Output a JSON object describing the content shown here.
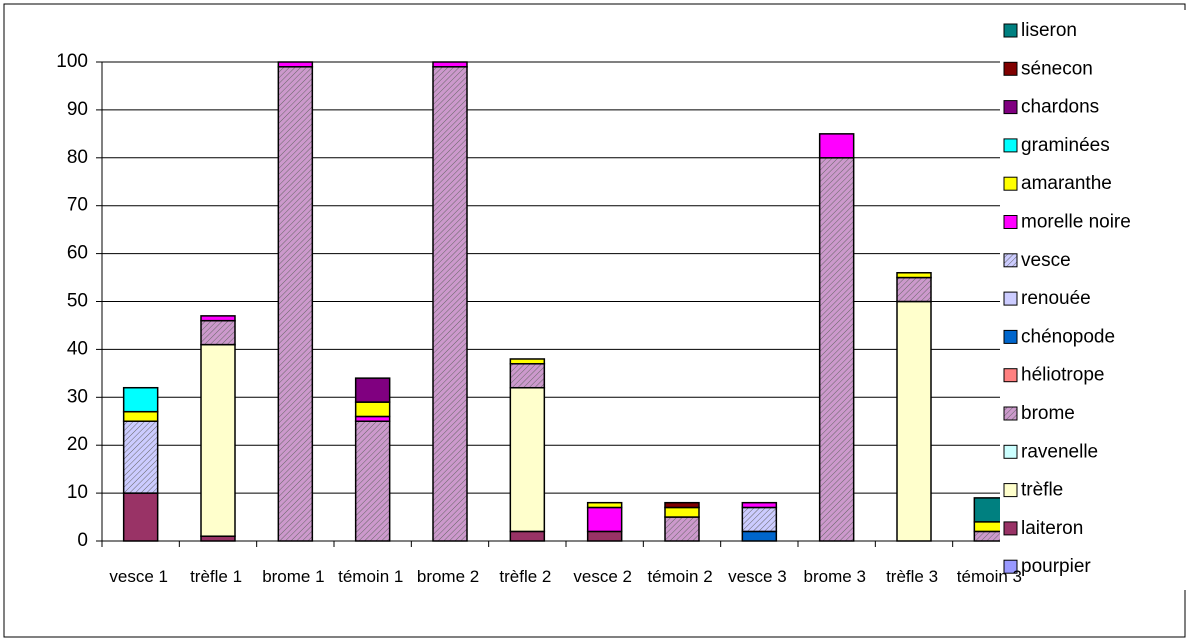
{
  "chart_data": {
    "type": "stacked_bar",
    "categories": [
      "vesce 1",
      "trèfle 1",
      "brome 1",
      "témoin 1",
      "brome 2",
      "trèfle 2",
      "vesce 2",
      "témoin 2",
      "vesce 3",
      "brome 3",
      "trèfle 3",
      "témoin 3"
    ],
    "series": [
      {
        "name": "liseron",
        "color": "#008080",
        "values": [
          0,
          0,
          0,
          0,
          0,
          0,
          0,
          0,
          0,
          0,
          0,
          5
        ]
      },
      {
        "name": "sénecon",
        "color": "#800000",
        "values": [
          0,
          0,
          0,
          0,
          0,
          0,
          0,
          1,
          0,
          0,
          0,
          0
        ]
      },
      {
        "name": "chardons",
        "color": "#800080",
        "values": [
          0,
          0,
          0,
          5,
          0,
          0,
          0,
          0,
          0,
          0,
          0,
          0
        ]
      },
      {
        "name": "graminées",
        "color": "#00ffff",
        "values": [
          5,
          0,
          0,
          0,
          0,
          0,
          0,
          0,
          0,
          0,
          0,
          0
        ]
      },
      {
        "name": "amaranthe",
        "color": "#ffff00",
        "values": [
          2,
          0,
          0,
          3,
          0,
          1,
          1,
          2,
          0,
          0,
          1,
          2
        ]
      },
      {
        "name": "morelle noire",
        "color": "#ff00ff",
        "values": [
          0,
          1,
          1,
          1,
          1,
          0,
          5,
          0,
          1,
          5,
          0,
          0
        ]
      },
      {
        "name": "vesce",
        "color": "#ccccff",
        "hatch": true,
        "values": [
          15,
          0,
          0,
          0,
          0,
          0,
          0,
          0,
          5,
          0,
          0,
          0
        ]
      },
      {
        "name": "renouée",
        "color": "#ccccff",
        "values": [
          0,
          0,
          0,
          0,
          0,
          0,
          0,
          0,
          0,
          0,
          0,
          0
        ]
      },
      {
        "name": "chénopode",
        "color": "#0066cc",
        "values": [
          0,
          0,
          0,
          0,
          0,
          0,
          0,
          0,
          2,
          0,
          0,
          0
        ]
      },
      {
        "name": "héliotrope",
        "color": "#ff8080",
        "values": [
          0,
          0,
          0,
          0,
          0,
          0,
          0,
          0,
          0,
          0,
          0,
          0
        ]
      },
      {
        "name": "brome",
        "color": "#cc99cc",
        "hatch": true,
        "values": [
          0,
          5,
          99,
          25,
          99,
          5,
          0,
          5,
          0,
          80,
          5,
          2
        ]
      },
      {
        "name": "ravenelle",
        "color": "#ccffff",
        "values": [
          0,
          0,
          0,
          0,
          0,
          0,
          0,
          0,
          0,
          0,
          0,
          0
        ]
      },
      {
        "name": "trèfle",
        "color": "#ffffcc",
        "values": [
          0,
          40,
          0,
          0,
          0,
          30,
          0,
          0,
          0,
          0,
          50,
          0
        ]
      },
      {
        "name": "laiteron",
        "color": "#993366",
        "values": [
          10,
          1,
          0,
          0,
          0,
          2,
          2,
          0,
          0,
          0,
          0,
          0
        ]
      },
      {
        "name": "pourpier",
        "color": "#9999ff",
        "values": [
          0,
          0,
          0,
          0,
          0,
          0,
          0,
          0,
          0,
          0,
          0,
          0
        ]
      }
    ],
    "ylim": [
      0,
      100
    ],
    "yticks": [
      0,
      10,
      20,
      30,
      40,
      50,
      60,
      70,
      80,
      90,
      100
    ],
    "grid": true
  }
}
